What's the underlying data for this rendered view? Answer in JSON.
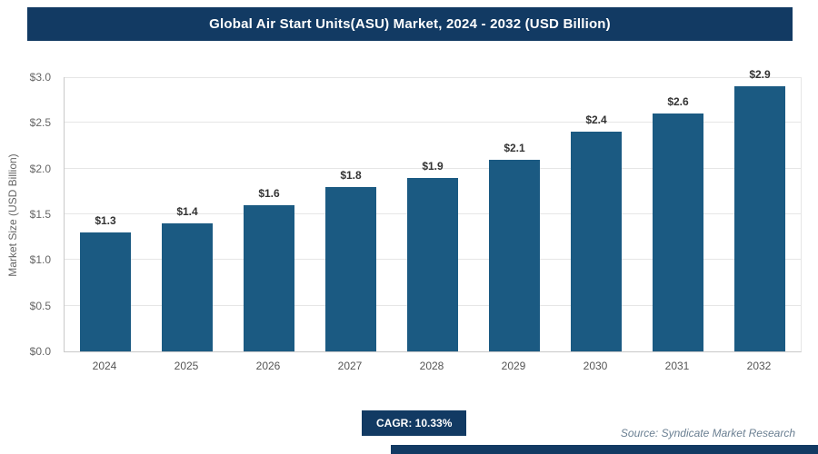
{
  "header": {
    "title": "Global Air Start Units(ASU) Market, 2024 - 2032 (USD Billion)"
  },
  "chart_data": {
    "type": "bar",
    "title": "Global Air Start Units(ASU) Market, 2024 - 2032 (USD Billion)",
    "categories": [
      "2024",
      "2025",
      "2026",
      "2027",
      "2028",
      "2029",
      "2030",
      "2031",
      "2032"
    ],
    "values": [
      1.3,
      1.4,
      1.6,
      1.8,
      1.9,
      2.1,
      2.4,
      2.6,
      2.9
    ],
    "labels": [
      "$1.3",
      "$1.4",
      "$1.6",
      "$1.8",
      "$1.9",
      "$2.1",
      "$2.4",
      "$2.6",
      "$2.9"
    ],
    "xlabel": "",
    "ylabel": "Market Size (USD Billion)",
    "ylim": [
      0,
      3
    ],
    "yticks": [
      "$0.0",
      "$0.5",
      "$1.0",
      "$1.5",
      "$2.0",
      "$2.5",
      "$3.0"
    ],
    "grid": true,
    "legend": "none",
    "bar_color": "#1b5a82"
  },
  "footer": {
    "cagr_label": "CAGR: 10.33%",
    "source": "Source: Syndicate Market Research"
  },
  "colors": {
    "header_bg": "#123a63",
    "accent": "#1b5a82",
    "gridline": "#e6e6e6"
  }
}
